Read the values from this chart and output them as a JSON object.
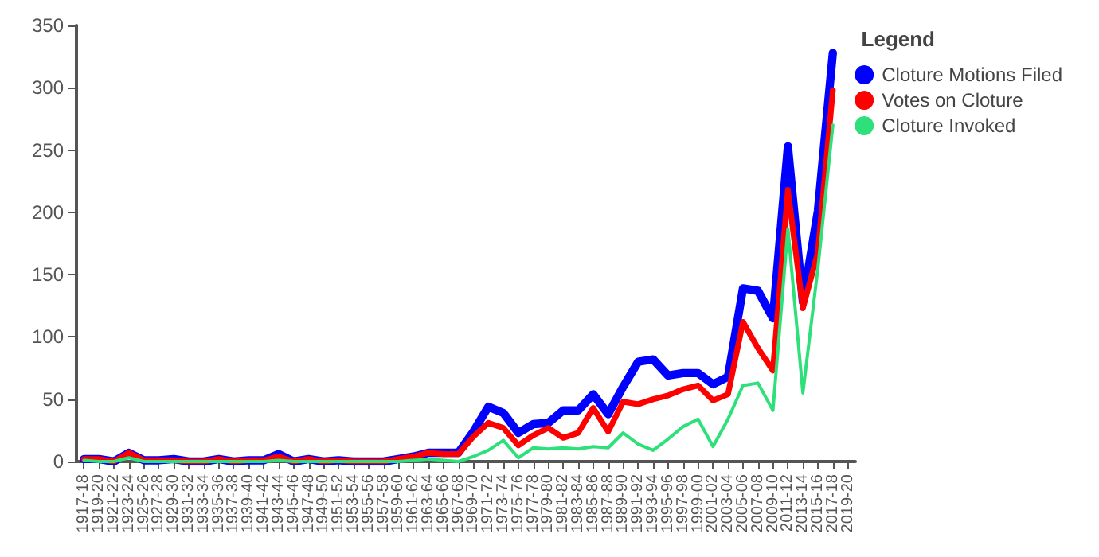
{
  "chart_data": {
    "type": "line",
    "legend_title": "Legend",
    "legend": "top right",
    "grid": false,
    "marker": "none",
    "line_style": "solid",
    "categories": [
      "1917-18",
      "1919-20",
      "1921-22",
      "1923-24",
      "1925-26",
      "1927-28",
      "1929-30",
      "1931-32",
      "1933-34",
      "1935-36",
      "1937-38",
      "1939-40",
      "1941-42",
      "1943-44",
      "1945-46",
      "1947-48",
      "1949-50",
      "1951-52",
      "1953-54",
      "1955-56",
      "1957-58",
      "1959-60",
      "1961-62",
      "1963-64",
      "1965-66",
      "1967-68",
      "1969-70",
      "1971-72",
      "1973-74",
      "1975-76",
      "1977-78",
      "1979-80",
      "1981-82",
      "1983-84",
      "1985-86",
      "1987-88",
      "1989-90",
      "1991-92",
      "1993-94",
      "1995-96",
      "1997-98",
      "1999-00",
      "2001-02",
      "2003-04",
      "2005-06",
      "2007-08",
      "2009-10",
      "2011-12",
      "2013-14",
      "2015-16",
      "2017-18",
      "2019-20"
    ],
    "ylim": [
      0,
      350
    ],
    "yticks": [
      0,
      50,
      100,
      150,
      200,
      250,
      300,
      350
    ],
    "series": [
      {
        "name": "Cloture Motions Filed",
        "color": "#0000ff",
        "values": [
          2,
          2,
          0,
          7,
          1,
          1,
          2,
          0,
          0,
          2,
          0,
          1,
          1,
          6,
          0,
          2,
          0,
          1,
          0,
          0,
          0,
          2,
          4,
          7,
          7,
          7,
          24,
          44,
          39,
          23,
          30,
          31,
          41,
          41,
          54,
          38,
          60,
          80,
          82,
          69,
          71,
          71,
          62,
          68,
          139,
          137,
          115,
          253,
          128,
          201,
          328,
          null
        ]
      },
      {
        "name": "Votes on Cloture",
        "color": "#ff0000",
        "values": [
          2,
          2,
          0,
          7,
          1,
          1,
          1,
          0,
          0,
          2,
          0,
          1,
          1,
          4,
          0,
          2,
          0,
          1,
          0,
          0,
          0,
          2,
          4,
          7,
          6,
          6,
          20,
          31,
          27,
          13,
          21,
          27,
          19,
          23,
          43,
          24,
          48,
          46,
          50,
          53,
          58,
          61,
          49,
          54,
          112,
          91,
          73,
          218,
          123,
          168,
          298,
          null
        ]
      },
      {
        "name": "Cloture Invoked",
        "color": "#2ee07a",
        "values": [
          1,
          0,
          0,
          3,
          0,
          0,
          0,
          0,
          0,
          0,
          0,
          0,
          0,
          1,
          0,
          0,
          0,
          0,
          0,
          0,
          0,
          0,
          1,
          2,
          1,
          0,
          4,
          9,
          17,
          3,
          11,
          10,
          11,
          10,
          12,
          11,
          23,
          14,
          9,
          18,
          28,
          34,
          12,
          34,
          61,
          63,
          41,
          187,
          55,
          155,
          270,
          null
        ]
      }
    ]
  }
}
